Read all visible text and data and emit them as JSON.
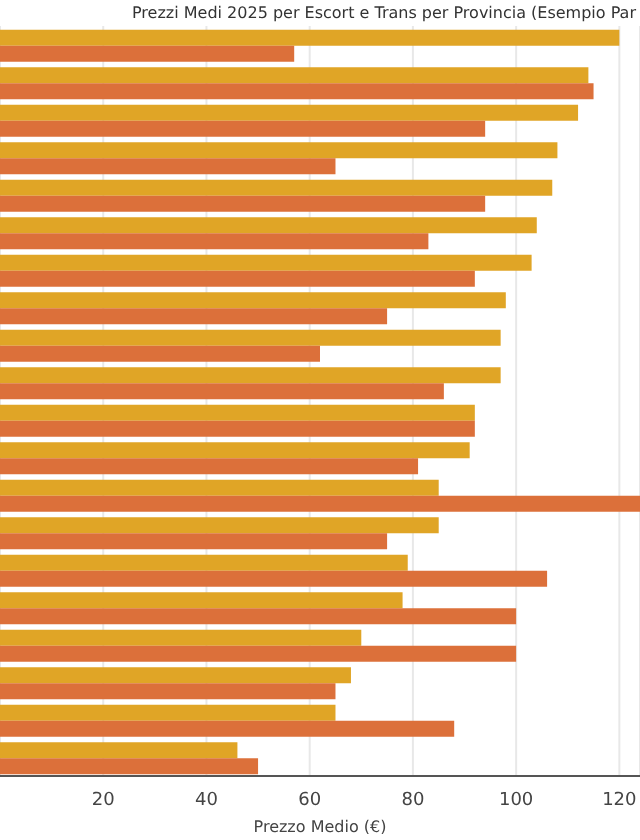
{
  "chart_data": {
    "type": "bar",
    "orientation": "horizontal",
    "title": "Prezzi Medi 2025 per Escort e Trans per Provincia (Esempio Par",
    "xlabel": "Prezzo Medio (€)",
    "categories": [
      null,
      null,
      null,
      null,
      null,
      null,
      null,
      null,
      null,
      null,
      null,
      null,
      null,
      null,
      null,
      null,
      null,
      null,
      null,
      null
    ],
    "series": [
      {
        "color": "#e0a526",
        "values": [
          120,
          114,
          112,
          108,
          107,
          104,
          103,
          98,
          97,
          97,
          92,
          91,
          85,
          85,
          79,
          78,
          70,
          68,
          65,
          46
        ]
      },
      {
        "color": "#dc703a",
        "values": [
          57,
          115,
          94,
          65,
          94,
          83,
          92,
          75,
          62,
          86,
          92,
          81,
          124,
          75,
          106,
          100,
          100,
          65,
          88,
          50
        ]
      }
    ],
    "xlim": [
      0,
      124
    ],
    "xticks": [
      20,
      40,
      60,
      80,
      100,
      120
    ],
    "grid": "x",
    "legend": false
  }
}
